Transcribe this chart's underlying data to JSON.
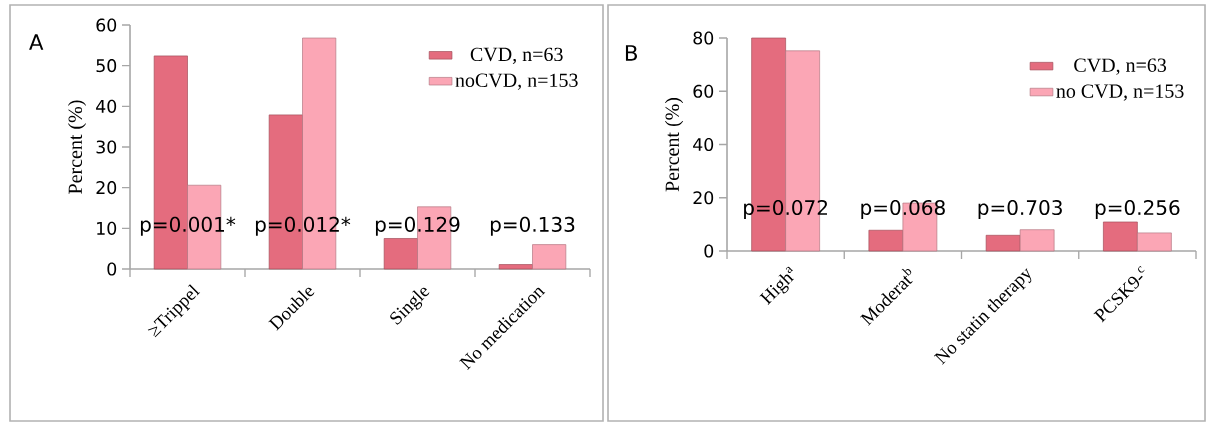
{
  "chart_data": [
    {
      "type": "bar",
      "ylabel": "Percent (%)",
      "categories": [
        "≥Trippel",
        "Double",
        "Single",
        "No medication"
      ],
      "series": [
        {
          "name": "CVD, n=63",
          "color": "#e46c7e",
          "values": [
            52.4,
            37.9,
            7.5,
            1.1
          ]
        },
        {
          "name": "noCVD, n=153",
          "color": "#fba6b5",
          "values": [
            20.6,
            56.8,
            15.3,
            6.0
          ]
        }
      ],
      "ylim": [
        0,
        60
      ],
      "yticks": [
        0,
        10,
        20,
        30,
        40,
        50,
        60
      ],
      "legend": "top right",
      "annotations": [
        "A",
        "p=0.001*",
        "p=0.012*",
        "p=0.129",
        "p=0.133"
      ]
    },
    {
      "type": "bar",
      "ylabel": "Percent (%)",
      "categories": [
        "High$^{a}$",
        "Moderat$^{b}$",
        "No statin therapy",
        "PCSK9-$^{c}$"
      ],
      "series": [
        {
          "name": "CVD, n=63",
          "color": "#e46c7e",
          "values": [
            80,
            7.8,
            5.9,
            10.9
          ]
        },
        {
          "name": "no CVD, n=153",
          "color": "#fba6b5",
          "values": [
            75.2,
            18,
            8,
            6.8
          ]
        }
      ],
      "ylim": [
        0,
        80
      ],
      "yticks": [
        0,
        20,
        40,
        60,
        80
      ],
      "legend": "top right",
      "annotations": [
        "B",
        "p=0.072",
        "p=0.068",
        "p=0.703",
        "p=0.256"
      ]
    }
  ]
}
